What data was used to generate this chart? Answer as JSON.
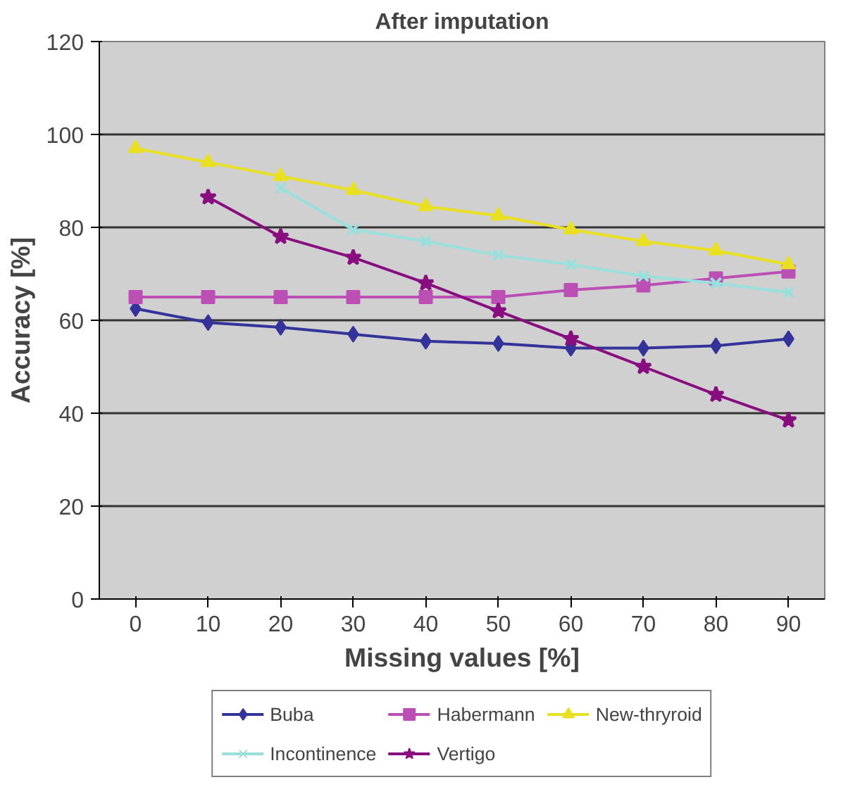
{
  "chart_data": {
    "type": "line",
    "title": "After imputation",
    "xlabel": "Missing values [%]",
    "ylabel": "Accuracy [%]",
    "categories": [
      "0",
      "10",
      "20",
      "30",
      "40",
      "50",
      "60",
      "70",
      "80",
      "90"
    ],
    "ylim": [
      0,
      120
    ],
    "yticks": [
      0,
      20,
      40,
      60,
      80,
      100,
      120
    ],
    "grid": "y",
    "legend": "bottom",
    "series": [
      {
        "name": "Buba",
        "color": "#333399",
        "marker": "diamond",
        "values": [
          62.5,
          59.5,
          58.5,
          57,
          55.5,
          55,
          54,
          54,
          54.5,
          56
        ]
      },
      {
        "name": "Habermann",
        "color": "#bb4fb4",
        "marker": "square",
        "values": [
          65,
          65,
          65,
          65,
          65,
          65,
          66.5,
          67.5,
          69,
          70.5
        ]
      },
      {
        "name": "New-thryroid",
        "color": "#e8e020",
        "marker": "triangle",
        "values": [
          97,
          94,
          91,
          88,
          84.5,
          82.5,
          79.5,
          77,
          75,
          72
        ]
      },
      {
        "name": "Incontinence",
        "color": "#99e0dd",
        "marker": "cross",
        "values": [
          null,
          null,
          88.5,
          79.5,
          77,
          74,
          72,
          69.5,
          68,
          66
        ]
      },
      {
        "name": "Vertigo",
        "color": "#880e80",
        "marker": "star",
        "values": [
          null,
          86.5,
          78,
          73.5,
          68,
          62,
          56,
          50,
          44,
          38.5
        ]
      }
    ]
  }
}
